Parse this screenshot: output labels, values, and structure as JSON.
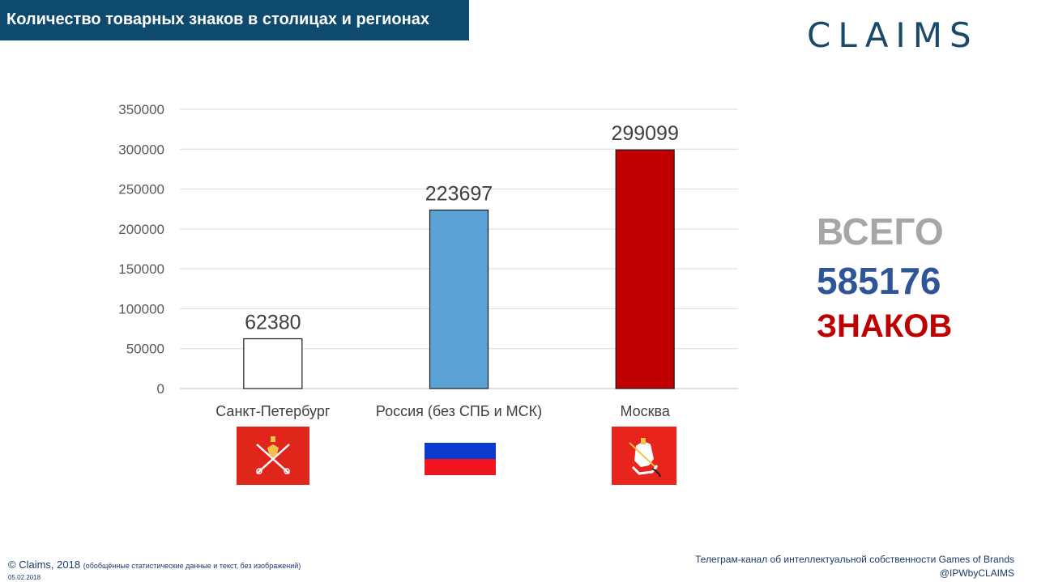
{
  "header": {
    "title": "Количество товарных знаков в столицах и регионах",
    "logo": "CLAIMS"
  },
  "chart_data": {
    "type": "bar",
    "title": "",
    "categories": [
      "Санкт-Петербург",
      "Россия (без СПБ и МСК)",
      "Москва"
    ],
    "values": [
      62380,
      223697,
      299099
    ],
    "data_labels": [
      "62380",
      "223697",
      "299099"
    ],
    "bar_colors": [
      "#ffffff",
      "#5ba3d6",
      "#c00000"
    ],
    "ylim": [
      0,
      350000
    ],
    "yticks": [
      "0",
      "50000",
      "100000",
      "150000",
      "200000",
      "250000",
      "300000",
      "350000"
    ],
    "grid": true,
    "xlabel": "",
    "ylabel": ""
  },
  "total": {
    "line1": "ВСЕГО",
    "line2": "585176",
    "line3": "ЗНАКОВ"
  },
  "flags": [
    "saint-petersburg-flag",
    "russia-flag",
    "moscow-flag"
  ],
  "footer": {
    "copyright": "© Claims, 2018",
    "note": "(обобщённые статистические данные и текст, без изображений)",
    "date": "05.02.2018",
    "channel": "Телеграм-канал об интеллектуальной собственности Games of Brands",
    "handle": "@IPWbyCLAIMS"
  }
}
